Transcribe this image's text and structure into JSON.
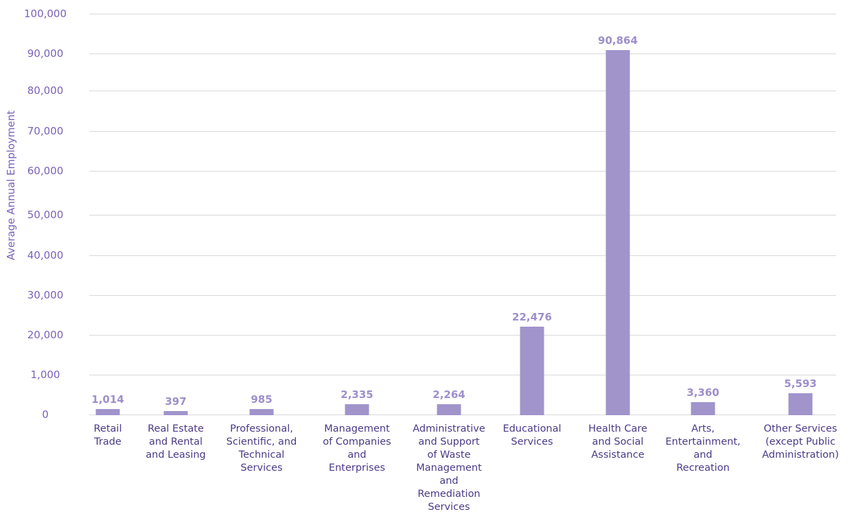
{
  "chart_data": {
    "type": "bar",
    "ylabel": "Average Annual Employment",
    "y_tick_labels": [
      "0",
      "1,000",
      "20,000",
      "30,000",
      "40,000",
      "50,000",
      "60,000",
      "70,000",
      "80,000",
      "90,000",
      "100,000"
    ],
    "categories": [
      [
        "Retail",
        "Trade"
      ],
      [
        "Real Estate",
        "and Rental",
        "and Leasing"
      ],
      [
        "Professional,",
        "Scientific, and",
        "Technical",
        "Services"
      ],
      [
        "Management",
        "of Companies",
        "and",
        "Enterprises"
      ],
      [
        "Administrative",
        "and Support",
        "of Waste",
        "Management",
        "and",
        "Remediation",
        "Services"
      ],
      [
        "Educational",
        "Services"
      ],
      [
        "Health Care",
        "and Social",
        "Assistance"
      ],
      [
        "Arts,",
        "Entertainment,",
        "and",
        "Recreation"
      ],
      [
        "Other Services",
        "(except Public",
        "Administration)"
      ]
    ],
    "values": [
      1014,
      397,
      985,
      2335,
      2264,
      22476,
      90864,
      3360,
      5593
    ],
    "value_labels": [
      "1,014",
      "397",
      "985",
      "2,335",
      "2,264",
      "22,476",
      "90,864",
      "3,360",
      "5,593"
    ],
    "grid": true,
    "legend": "none",
    "colors": {
      "bar": "#a094cb",
      "data_label": "#9d8fcb",
      "axis_text": "#7b62b8",
      "category_text": "#4a3a86",
      "grid": "#d9d9d9"
    }
  }
}
